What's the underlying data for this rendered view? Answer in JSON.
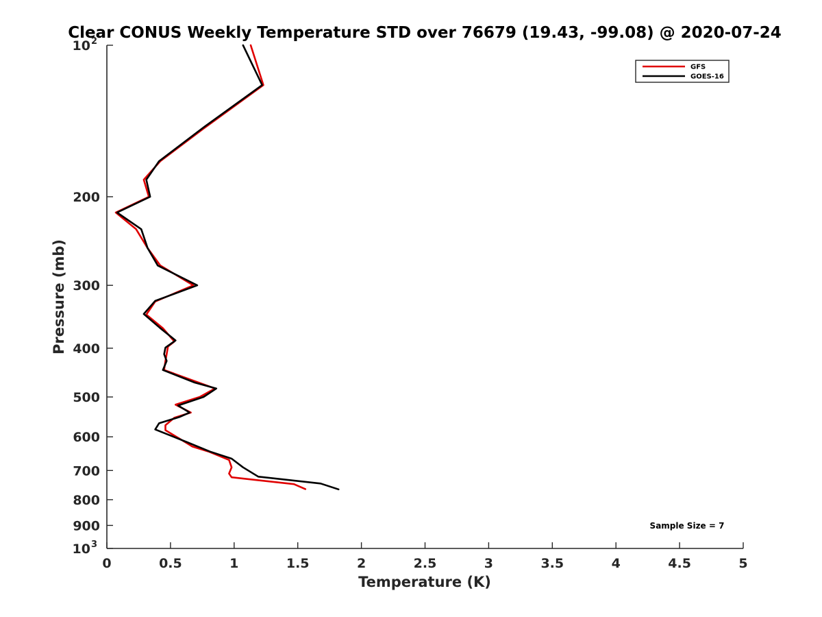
{
  "chart_data": {
    "type": "line",
    "title": "Clear CONUS Weekly Temperature STD over 76679 (19.43, -99.08) @ 2020-07-24",
    "xlabel": "Temperature (K)",
    "ylabel": "Pressure (mb)",
    "xlim": [
      0,
      5
    ],
    "ylim": [
      100,
      1000
    ],
    "y_scale": "log",
    "y_reversed": true,
    "grid": false,
    "legend_position": "top-right",
    "x_ticks": [
      "0",
      "0.5",
      "1",
      "1.5",
      "2",
      "2.5",
      "3",
      "3.5",
      "4",
      "4.5",
      "5"
    ],
    "x_tick_values": [
      0,
      0.5,
      1,
      1.5,
      2,
      2.5,
      3,
      3.5,
      4,
      4.5,
      5
    ],
    "y_ticks": [
      {
        "value": 100,
        "base": "10",
        "exp": "2"
      },
      {
        "value": 200,
        "label": "200"
      },
      {
        "value": 300,
        "label": "300"
      },
      {
        "value": 400,
        "label": "400"
      },
      {
        "value": 500,
        "label": "500"
      },
      {
        "value": 600,
        "label": "600"
      },
      {
        "value": 700,
        "label": "700"
      },
      {
        "value": 800,
        "label": "800"
      },
      {
        "value": 900,
        "label": "900"
      },
      {
        "value": 1000,
        "base": "10",
        "exp": "3"
      }
    ],
    "series": [
      {
        "name": "GFS",
        "color": "#e00000",
        "points": [
          [
            1.13,
            100
          ],
          [
            1.23,
            120
          ],
          [
            0.75,
            147
          ],
          [
            0.42,
            170
          ],
          [
            0.29,
            185
          ],
          [
            0.33,
            200
          ],
          [
            0.07,
            215
          ],
          [
            0.23,
            232
          ],
          [
            0.32,
            253
          ],
          [
            0.42,
            274
          ],
          [
            0.68,
            300
          ],
          [
            0.38,
            323
          ],
          [
            0.31,
            343
          ],
          [
            0.44,
            365
          ],
          [
            0.53,
            388
          ],
          [
            0.48,
            397
          ],
          [
            0.47,
            411
          ],
          [
            0.46,
            424
          ],
          [
            0.45,
            442
          ],
          [
            0.72,
            468
          ],
          [
            0.85,
            481
          ],
          [
            0.73,
            500
          ],
          [
            0.54,
            518
          ],
          [
            0.66,
            537
          ],
          [
            0.53,
            550
          ],
          [
            0.46,
            569
          ],
          [
            0.46,
            582
          ],
          [
            0.57,
            605
          ],
          [
            0.67,
            627
          ],
          [
            0.8,
            642
          ],
          [
            0.96,
            667
          ],
          [
            0.98,
            690
          ],
          [
            0.96,
            710
          ],
          [
            0.98,
            722
          ],
          [
            1.47,
            745
          ],
          [
            1.56,
            762
          ]
        ]
      },
      {
        "name": "GOES-16",
        "color": "#000000",
        "points": [
          [
            1.07,
            100
          ],
          [
            1.22,
            120
          ],
          [
            0.77,
            145
          ],
          [
            0.41,
            170
          ],
          [
            0.31,
            185
          ],
          [
            0.34,
            200
          ],
          [
            0.08,
            215
          ],
          [
            0.27,
            232
          ],
          [
            0.32,
            253
          ],
          [
            0.4,
            274
          ],
          [
            0.71,
            300
          ],
          [
            0.38,
            322
          ],
          [
            0.29,
            342
          ],
          [
            0.42,
            365
          ],
          [
            0.54,
            386
          ],
          [
            0.46,
            399
          ],
          [
            0.45,
            411
          ],
          [
            0.47,
            424
          ],
          [
            0.44,
            442
          ],
          [
            0.69,
            468
          ],
          [
            0.86,
            481
          ],
          [
            0.76,
            500
          ],
          [
            0.56,
            520
          ],
          [
            0.65,
            537
          ],
          [
            0.57,
            548
          ],
          [
            0.41,
            564
          ],
          [
            0.38,
            580
          ],
          [
            0.63,
            615
          ],
          [
            0.81,
            642
          ],
          [
            0.98,
            663
          ],
          [
            1.07,
            690
          ],
          [
            1.19,
            720
          ],
          [
            1.68,
            743
          ],
          [
            1.82,
            763
          ]
        ]
      }
    ],
    "annotation": "Sample Size = 7"
  }
}
